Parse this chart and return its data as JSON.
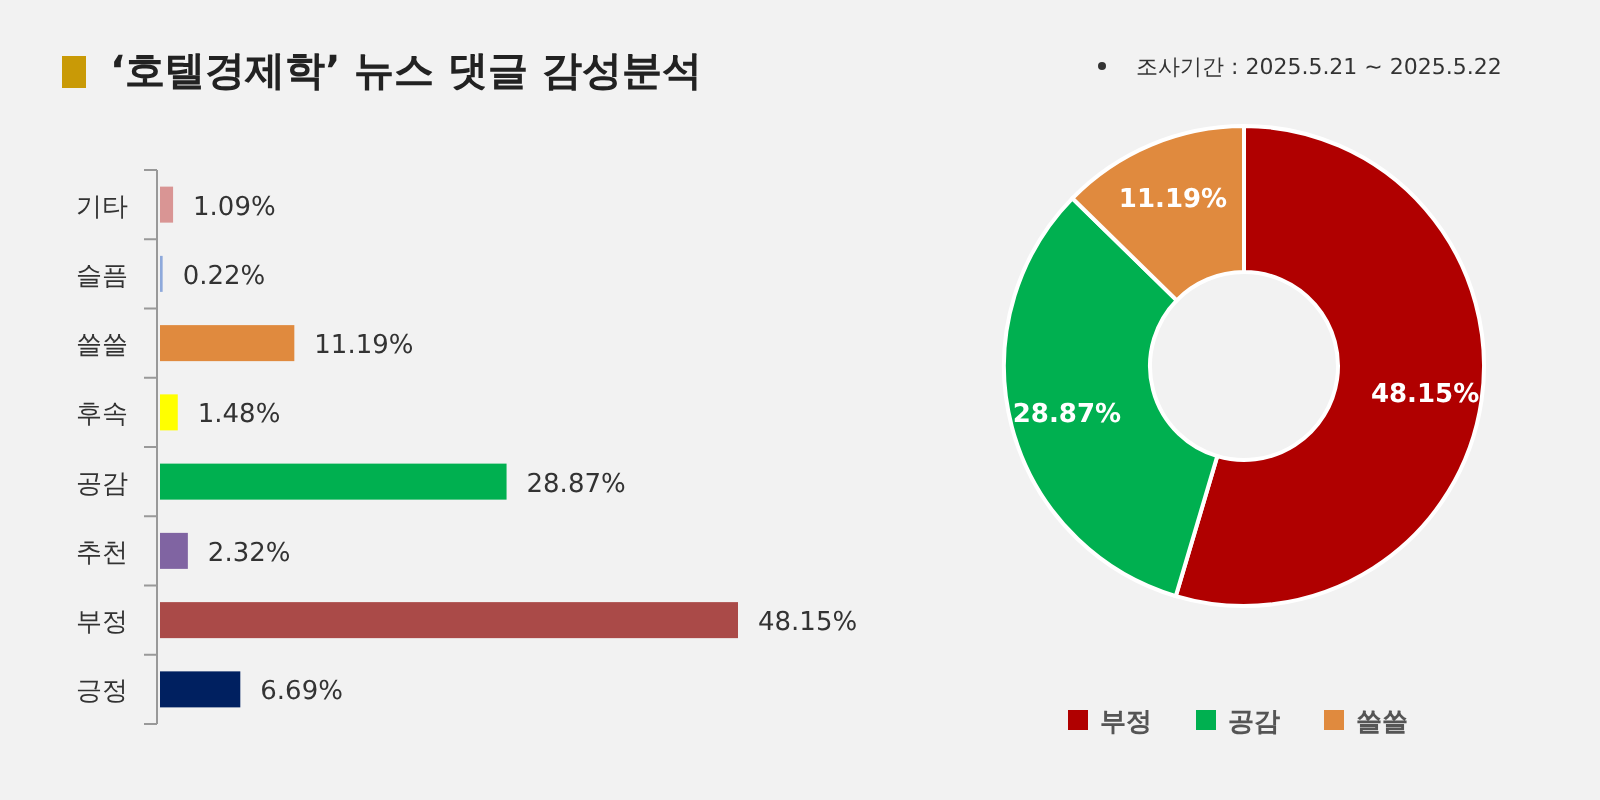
{
  "chart_data": [
    {
      "type": "bar",
      "orientation": "horizontal",
      "title": "‘호텔경제학’ 뉴스 댓글 감성분석",
      "annotations": [
        "조사기간 : 2025.5.21 ~ 2025.5.22"
      ],
      "categories": [
        "기타",
        "슬픔",
        "쓸쓸",
        "후속",
        "공감",
        "추천",
        "부정",
        "긍정"
      ],
      "values": [
        1.09,
        0.22,
        11.19,
        1.48,
        28.87,
        2.32,
        48.15,
        6.69
      ],
      "colors": [
        "#d99594",
        "#8ea9db",
        "#e08a3e",
        "#ffff00",
        "#00b050",
        "#8064a2",
        "#aa4a48",
        "#002060"
      ],
      "value_labels": [
        "1.09%",
        "0.22%",
        "11.19%",
        "1.48%",
        "28.87%",
        "2.32%",
        "48.15%",
        "6.69%"
      ]
    },
    {
      "type": "donut",
      "categories": [
        "부정",
        "공감",
        "쓸쓸"
      ],
      "values": [
        48.15,
        28.87,
        11.19
      ],
      "colors": [
        "#b00000",
        "#00b050",
        "#e08a3e"
      ],
      "value_labels": [
        "48.15%",
        "28.87%",
        "11.19%"
      ],
      "legend": "bottom"
    }
  ]
}
